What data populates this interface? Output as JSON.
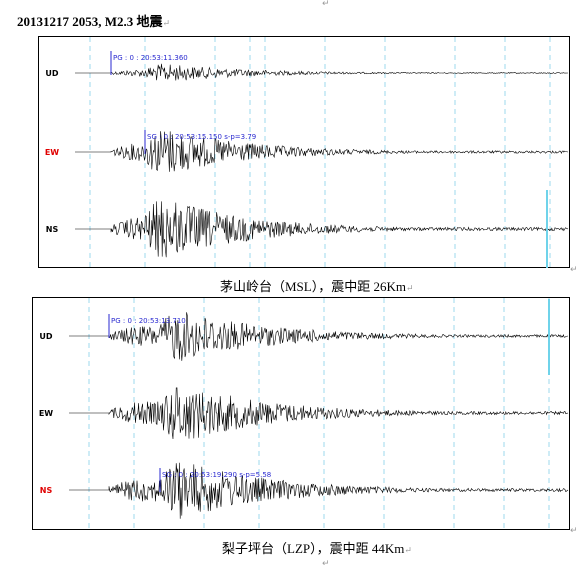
{
  "document": {
    "title": "20131217 2053, M2.3 地震",
    "para_mark": "↵",
    "top_mark": "↵"
  },
  "panels": [
    {
      "caption": "茅山岭台（MSL），震中距 26Km",
      "channels": [
        {
          "label": "UD",
          "label_color": "#000000",
          "pick": "PG : 0 : 20:53:11.360"
        },
        {
          "label": "EW",
          "label_color": "#e00000",
          "pick": "SG : 0 : 20:53:15.150 s-p=3.79"
        },
        {
          "label": "NS",
          "label_color": "#000000",
          "pick": ""
        }
      ]
    },
    {
      "caption": "梨子坪台（LZP），震中距 44Km",
      "channels": [
        {
          "label": "UD",
          "label_color": "#000000",
          "pick": "PG : 0 : 20:53:13.710"
        },
        {
          "label": "EW",
          "label_color": "#000000",
          "pick": ""
        },
        {
          "label": "NS",
          "label_color": "#e00000",
          "pick": "SG : 0 : 20:53:19.290 s-p=5.58"
        }
      ]
    }
  ],
  "colors": {
    "trace": "#000000",
    "grid": "#9ed8ee",
    "pick": "#2a2ad0",
    "event_marker": "#6fd3ea"
  }
}
